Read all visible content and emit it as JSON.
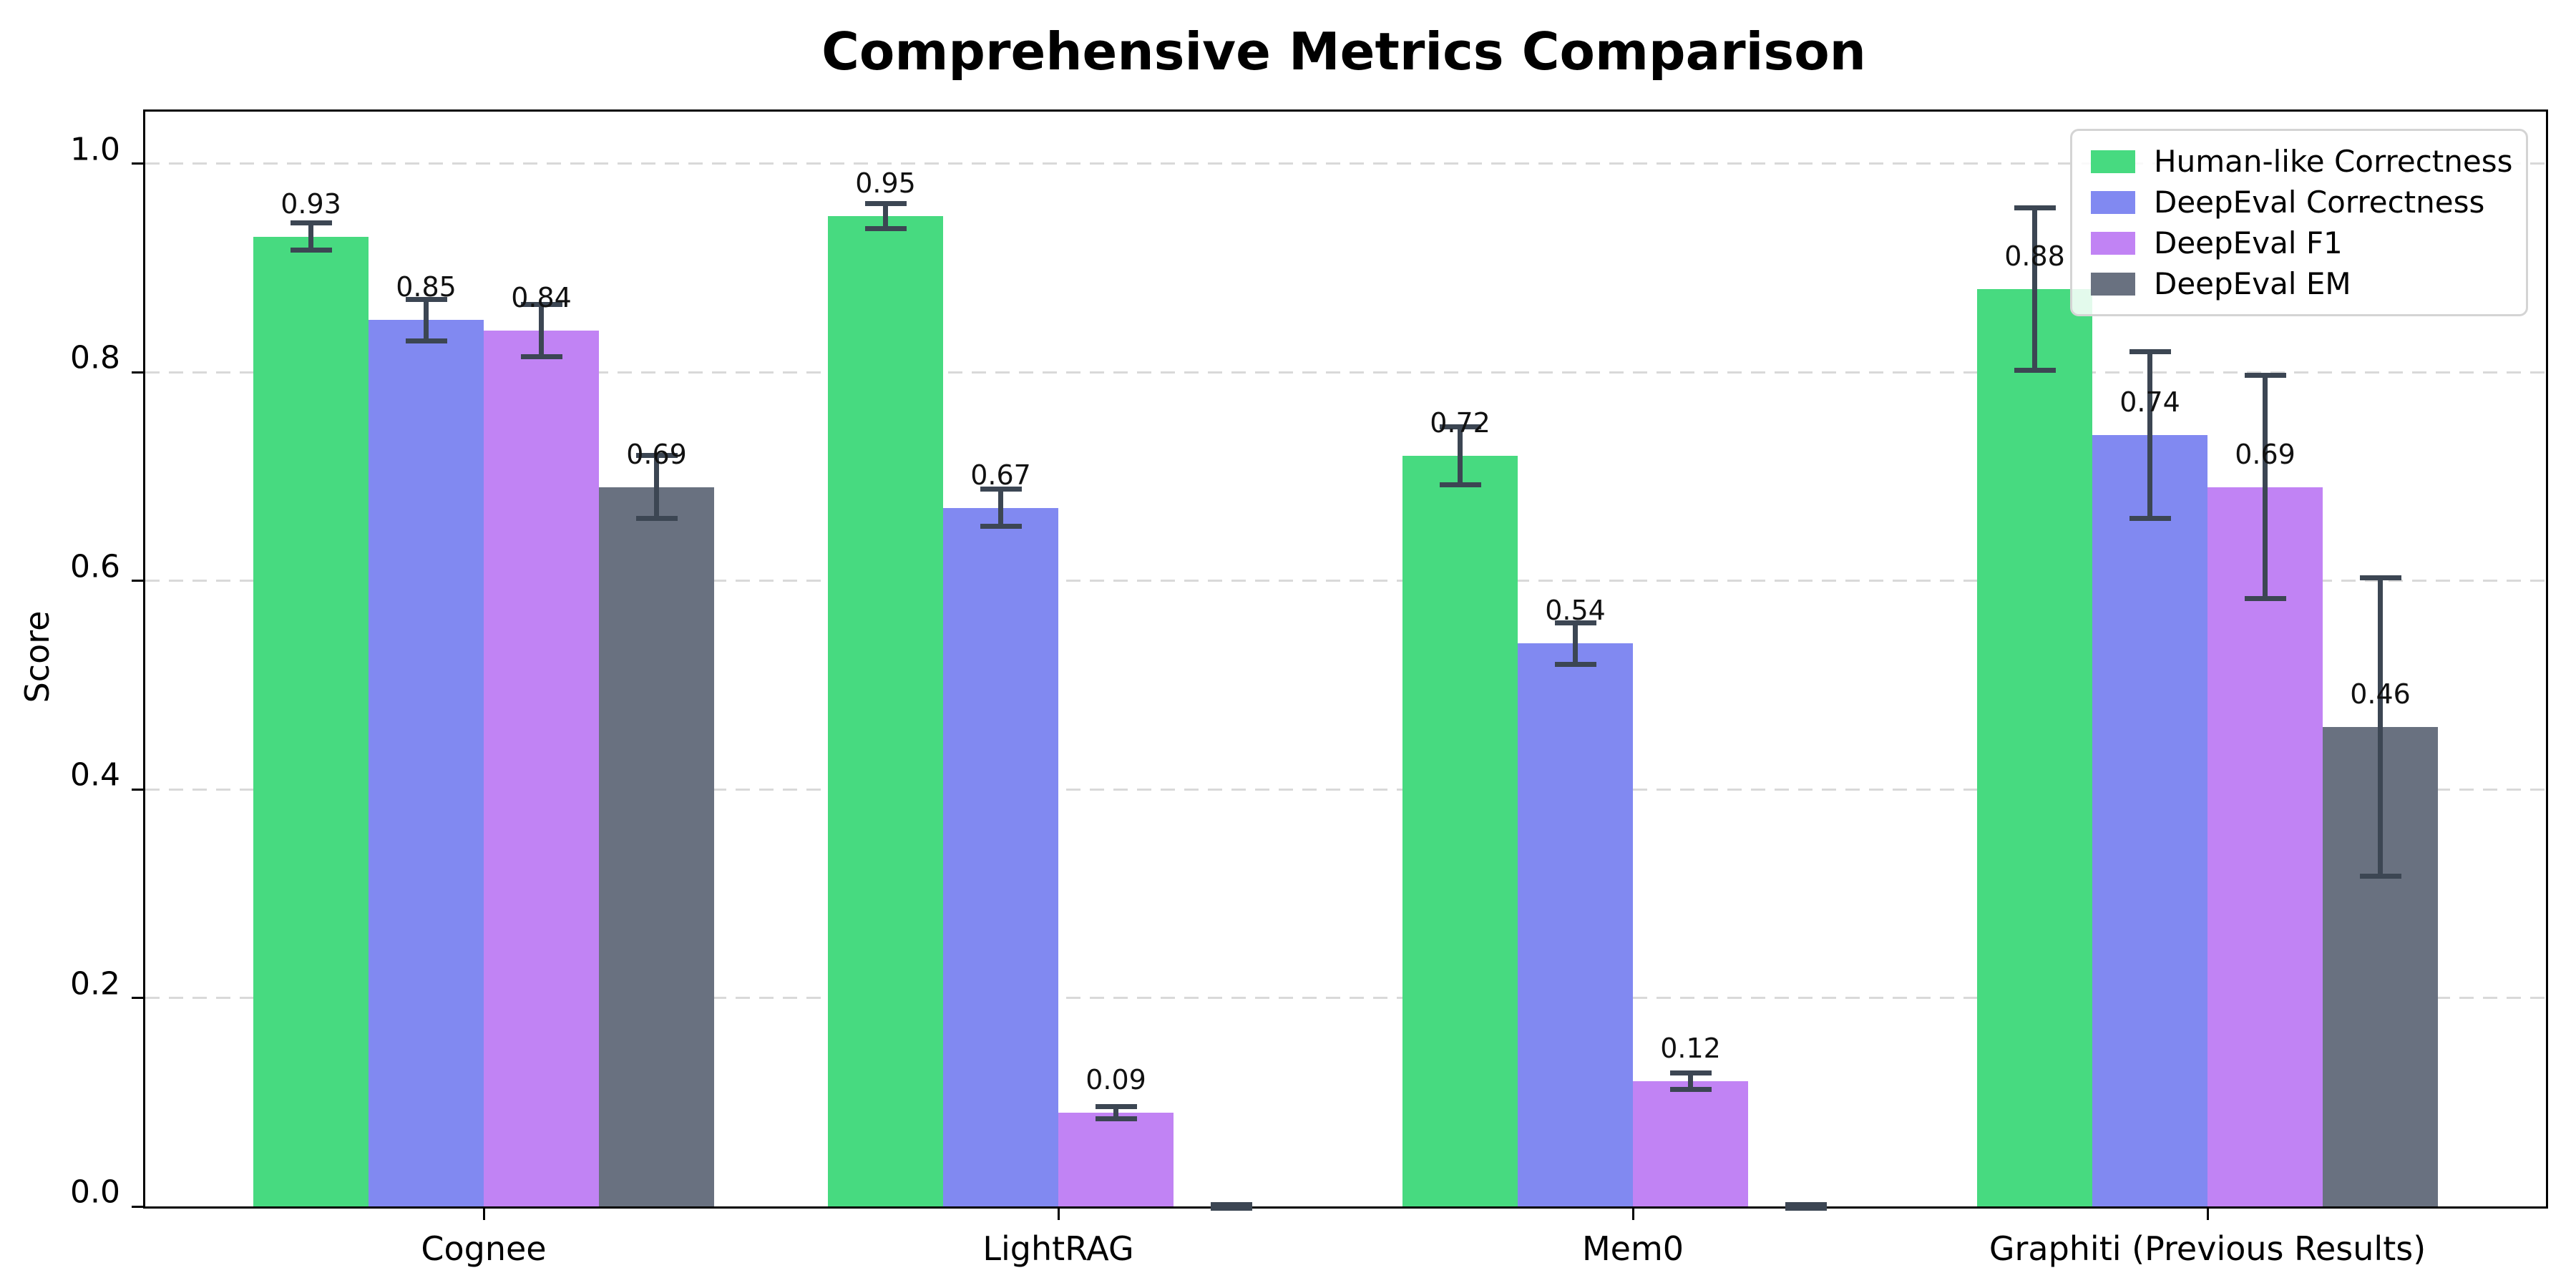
{
  "title": "Comprehensive Metrics Comparison",
  "chart_data": {
    "type": "bar",
    "title": "Comprehensive Metrics Comparison",
    "xlabel": "",
    "ylabel": "Score",
    "ylim": [
      0,
      1.05
    ],
    "yticks": [
      0.0,
      0.2,
      0.4,
      0.6,
      0.8,
      1.0
    ],
    "grid": "horizontal dashed gridlines at each y tick",
    "legend_position": "upper-right",
    "error_bar_color": "#3c4653",
    "categories": [
      "Cognee",
      "LightRAG",
      "Mem0",
      "Graphiti (Previous Results)"
    ],
    "series": [
      {
        "name": "Human-like Correctness",
        "color": "#47da80",
        "values": [
          0.93,
          0.95,
          0.72,
          0.88
        ],
        "errors": [
          0.013,
          0.012,
          0.028,
          0.078
        ],
        "labels": [
          "0.93",
          "0.95",
          "0.72",
          "0.88"
        ]
      },
      {
        "name": "DeepEval Correctness",
        "color": "#8189f1",
        "values": [
          0.85,
          0.67,
          0.54,
          0.74
        ],
        "errors": [
          0.02,
          0.018,
          0.02,
          0.08
        ],
        "labels": [
          "0.85",
          "0.67",
          "0.54",
          "0.74"
        ]
      },
      {
        "name": "DeepEval F1",
        "color": "#c183f4",
        "values": [
          0.84,
          0.09,
          0.12,
          0.69
        ],
        "errors": [
          0.025,
          0.006,
          0.008,
          0.107
        ],
        "labels": [
          "0.84",
          "0.09",
          "0.12",
          "0.69"
        ]
      },
      {
        "name": "DeepEval EM",
        "color": "#697180",
        "values": [
          0.69,
          0.0,
          0.0,
          0.46
        ],
        "errors": [
          0.03,
          0.002,
          0.002,
          0.143
        ],
        "labels": [
          "0.69",
          null,
          null,
          "0.46"
        ]
      }
    ]
  }
}
